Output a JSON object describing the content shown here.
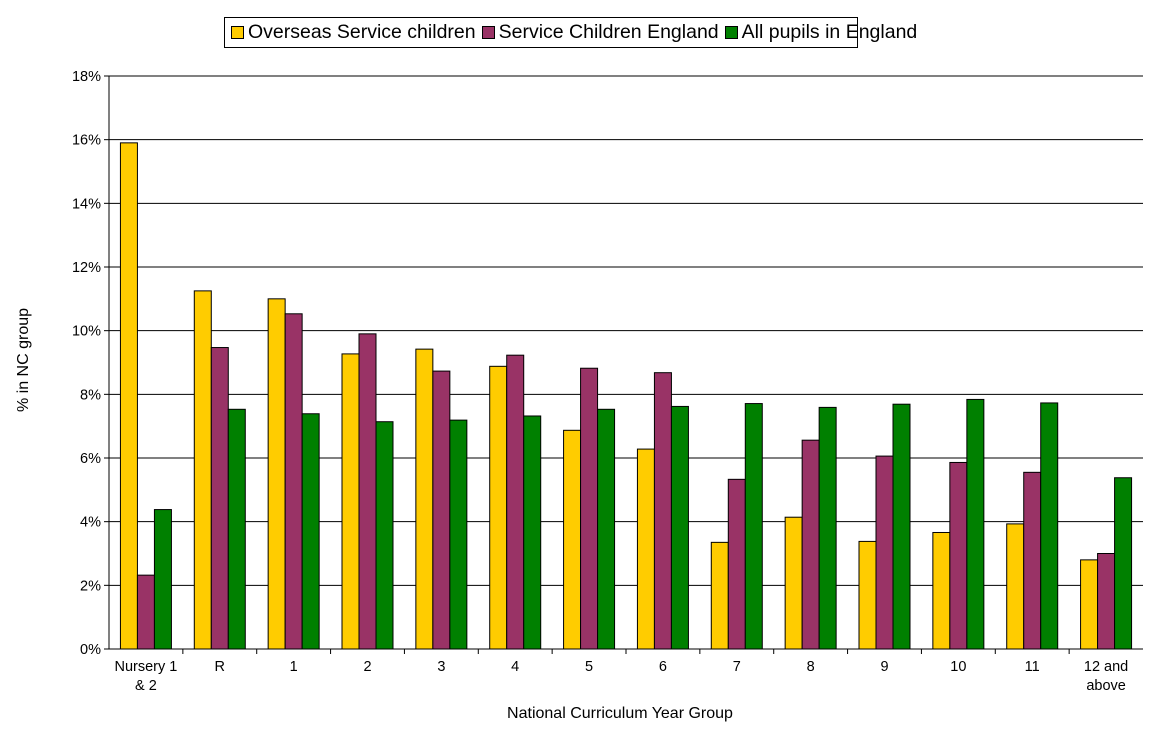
{
  "chart_data": {
    "type": "bar",
    "xlabel": "National Curriculum Year Group",
    "ylabel": "% in NC group",
    "ylim": [
      0,
      18
    ],
    "yticks": [
      0,
      2,
      4,
      6,
      8,
      10,
      12,
      14,
      16,
      18
    ],
    "ytick_suffix": "%",
    "grid": "horizontal",
    "legend_position": "top",
    "categories": [
      [
        "Nursery 1",
        "& 2"
      ],
      [
        "R"
      ],
      [
        "1"
      ],
      [
        "2"
      ],
      [
        "3"
      ],
      [
        "4"
      ],
      [
        "5"
      ],
      [
        "6"
      ],
      [
        "7"
      ],
      [
        "8"
      ],
      [
        "9"
      ],
      [
        "10"
      ],
      [
        "11"
      ],
      [
        "12 and",
        "above"
      ]
    ],
    "series": [
      {
        "name": "Overseas Service children",
        "color": "#FFCC00",
        "values": [
          15.9,
          11.25,
          11.0,
          9.27,
          9.42,
          8.88,
          6.87,
          6.28,
          3.35,
          4.14,
          3.38,
          3.66,
          3.93,
          2.8
        ]
      },
      {
        "name": "Service Children England",
        "color": "#993366",
        "values": [
          2.32,
          9.47,
          10.53,
          9.9,
          8.73,
          9.23,
          8.82,
          8.68,
          5.33,
          6.56,
          6.06,
          5.86,
          5.55,
          3.0
        ]
      },
      {
        "name": "All pupils in England",
        "color": "#008000",
        "values": [
          4.38,
          7.53,
          7.39,
          7.14,
          7.19,
          7.32,
          7.53,
          7.62,
          7.71,
          7.59,
          7.69,
          7.84,
          7.73,
          5.38
        ]
      }
    ]
  }
}
